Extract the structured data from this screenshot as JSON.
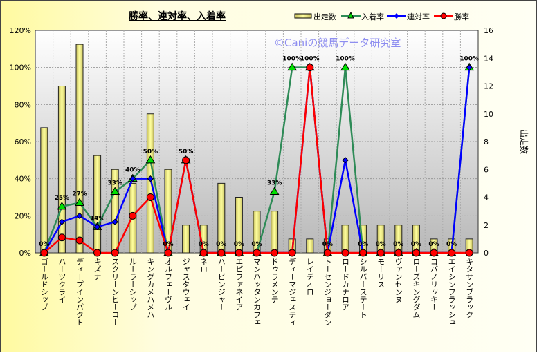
{
  "chart_data": {
    "type": "bar+line",
    "title": "勝率、連対率、入着率",
    "watermark": "©Caniの競馬データ研究室",
    "ylabel_right": "出走数",
    "ylim_left": [
      0,
      120
    ],
    "ylim_right": [
      0,
      16
    ],
    "yticks_left": [
      "0%",
      "20%",
      "40%",
      "60%",
      "80%",
      "100%",
      "120%"
    ],
    "yticks_right": [
      "0",
      "2",
      "4",
      "6",
      "8",
      "10",
      "12",
      "14",
      "16"
    ],
    "legend_position": "top-right",
    "categories": [
      "ゴールドシップ",
      "ハーツクライ",
      "ディープインパクト",
      "キズナ",
      "スクリーンヒーロー",
      "ルーラーシップ",
      "キングカメハメハ",
      "オルフェーヴル",
      "ジャスタウェイ",
      "ネロ",
      "ハービンジャー",
      "エピファネイア",
      "マンハッタンカフェ",
      "ドゥラメンテ",
      "ディーマジェスティ",
      "レイデオロ",
      "トーセンジョーダン",
      "ロードカナロア",
      "シルバーステート",
      "モーリス",
      "ヴァンセンヌ",
      "ローズキングダム",
      "コパノリッキー",
      "エイシンフラッシュ",
      "キタサンブラック"
    ],
    "series": [
      {
        "name": "出走数",
        "type": "bar",
        "axis": "right",
        "color": "#f5f08a",
        "values": [
          9,
          12,
          15,
          7,
          6,
          5,
          10,
          6,
          2,
          2,
          5,
          4,
          3,
          3,
          1,
          1,
          1,
          2,
          2,
          2,
          2,
          2,
          1,
          1,
          1
        ]
      },
      {
        "name": "入着率",
        "type": "line",
        "axis": "left",
        "color": "#2e8b57",
        "marker": "triangle",
        "values": [
          0,
          25,
          27,
          14,
          33,
          40,
          50,
          0,
          50,
          0,
          0,
          0,
          0,
          33,
          100,
          100,
          0,
          100,
          0,
          0,
          0,
          0,
          0,
          0,
          100
        ]
      },
      {
        "name": "連対率",
        "type": "line",
        "axis": "left",
        "color": "#0000ff",
        "marker": "diamond",
        "values": [
          0,
          16.7,
          20,
          14,
          16.7,
          40,
          40,
          0,
          50,
          0,
          0,
          0,
          0,
          0,
          0,
          100,
          0,
          50,
          0,
          0,
          0,
          0,
          0,
          0,
          100
        ]
      },
      {
        "name": "勝率",
        "type": "line",
        "axis": "left",
        "color": "#ff0000",
        "marker": "circle",
        "values": [
          0,
          8.3,
          6.7,
          0,
          0,
          20,
          30,
          0,
          50,
          0,
          0,
          0,
          0,
          0,
          0,
          100,
          0,
          0,
          0,
          0,
          0,
          0,
          0,
          0,
          0
        ]
      }
    ],
    "data_labels": [
      "0%",
      "25%",
      "27%",
      "14%",
      "33%",
      "40%",
      "50%",
      "0%",
      "50%",
      "0%",
      "0%",
      "0%",
      "0%",
      "33%",
      "100%",
      "100%",
      "0%",
      "100%",
      "0%",
      "0%",
      "0%",
      "0%",
      "0%",
      "0%",
      "100%"
    ]
  }
}
